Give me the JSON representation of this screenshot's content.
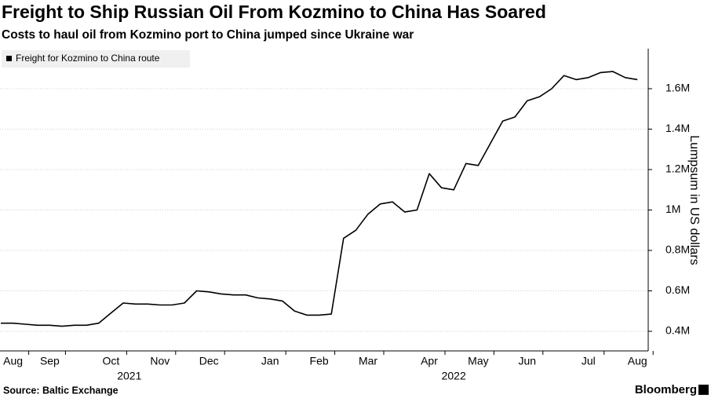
{
  "chart_data": {
    "type": "line",
    "title": "Freight to Ship Russian Oil From Kozmino to China Has Soared",
    "subtitle": "Costs to haul oil from Kozmino port to China jumped since Ukraine war",
    "y_axis_label": "Lumpsum in US dollars",
    "source": "Source: Baltic Exchange",
    "brand": "Bloomberg",
    "categories": [
      null,
      "Aug",
      null,
      null,
      "Sep",
      null,
      null,
      null,
      null,
      "Oct",
      null,
      null,
      null,
      "Nov",
      null,
      null,
      null,
      "Dec",
      null,
      null,
      null,
      null,
      "Jan",
      null,
      null,
      null,
      "Feb",
      null,
      null,
      null,
      "Mar",
      null,
      null,
      null,
      null,
      "Apr",
      null,
      null,
      null,
      "May",
      null,
      null,
      null,
      "Jun",
      null,
      null,
      null,
      null,
      "Jul",
      null,
      null,
      null,
      "Aug"
    ],
    "x_groups": [
      {
        "label": "2021",
        "span": [
          0,
          21
        ]
      },
      {
        "label": "2022",
        "span": [
          22,
          52
        ]
      }
    ],
    "series": [
      {
        "name": "Freight for Kozmino to China route",
        "color": "#000000",
        "values": [
          440000,
          440000,
          435000,
          430000,
          430000,
          425000,
          430000,
          430000,
          440000,
          490000,
          540000,
          535000,
          535000,
          530000,
          530000,
          540000,
          600000,
          595000,
          585000,
          580000,
          580000,
          565000,
          560000,
          550000,
          500000,
          480000,
          480000,
          485000,
          860000,
          900000,
          980000,
          1030000,
          1040000,
          990000,
          1000000,
          1180000,
          1110000,
          1100000,
          1230000,
          1220000,
          1330000,
          1440000,
          1460000,
          1540000,
          1560000,
          1600000,
          1665000,
          1645000,
          1655000,
          1680000,
          1685000,
          1655000,
          1645000
        ]
      }
    ],
    "ylim": [
      303000,
      1798000
    ],
    "yticks": [
      {
        "value": 400000,
        "label": "0.4M"
      },
      {
        "value": 600000,
        "label": "0.6M"
      },
      {
        "value": 800000,
        "label": "0.8M"
      },
      {
        "value": 1000000,
        "label": "1M"
      },
      {
        "value": 1200000,
        "label": "1.2M"
      },
      {
        "value": 1400000,
        "label": "1.4M"
      },
      {
        "value": 1600000,
        "label": "1.6M"
      }
    ],
    "grid": true,
    "legend": "top-left"
  }
}
